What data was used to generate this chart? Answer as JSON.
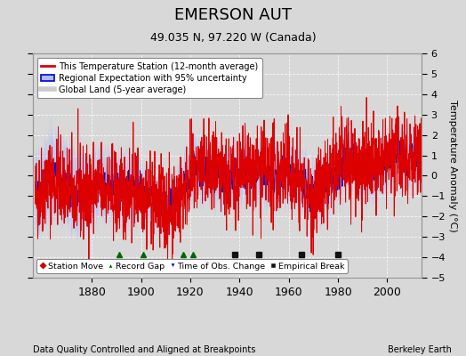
{
  "title": "EMERSON AUT",
  "subtitle": "49.035 N, 97.220 W (Canada)",
  "ylabel": "Temperature Anomaly (°C)",
  "xlabel_note": "Data Quality Controlled and Aligned at Breakpoints",
  "source_note": "Berkeley Earth",
  "xlim": [
    1856,
    2014
  ],
  "ylim": [
    -5,
    6
  ],
  "yticks": [
    -5,
    -4,
    -3,
    -2,
    -1,
    0,
    1,
    2,
    3,
    4,
    5,
    6
  ],
  "xticks": [
    1880,
    1900,
    1920,
    1940,
    1960,
    1980,
    2000
  ],
  "bg_color": "#d8d8d8",
  "plot_bg_color": "#d8d8d8",
  "red_color": "#dd0000",
  "blue_color": "#0000cc",
  "blue_fill_color": "#aabbff",
  "gray_color": "#bbbbbb",
  "gray_fill_color": "#cccccc",
  "station_move_color": "#cc0000",
  "record_gap_color": "#006600",
  "obs_change_color": "#0000cc",
  "empirical_break_color": "#111111",
  "record_gaps": [
    1891,
    1901,
    1917,
    1921
  ],
  "empirical_breaks": [
    1938,
    1948,
    1965,
    1980
  ],
  "seed": 42,
  "years_start": 1857,
  "years_end": 2013
}
